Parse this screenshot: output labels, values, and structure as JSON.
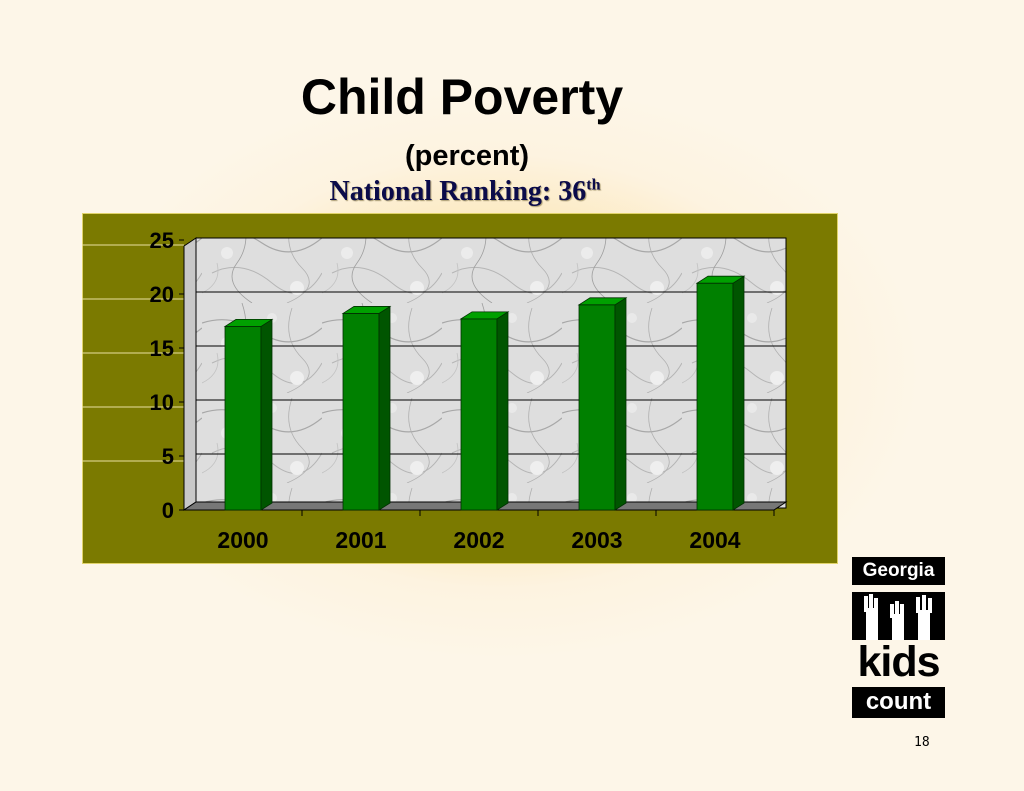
{
  "slide": {
    "title": "Child Poverty",
    "subtitle": "(percent)",
    "ranking_text": "National Ranking: 36",
    "ranking_sup": "th",
    "page_number": "18"
  },
  "logo": {
    "line1": "Georgia",
    "line2": "kids",
    "line3": "count"
  },
  "chart_data": {
    "type": "bar",
    "categories": [
      "2000",
      "2001",
      "2002",
      "2003",
      "2004"
    ],
    "values": [
      17,
      18.2,
      17.7,
      19,
      21
    ],
    "title": "",
    "xlabel": "",
    "ylabel": "",
    "ylim": [
      0,
      25
    ],
    "yticks": [
      "0",
      "5",
      "10",
      "15",
      "20",
      "25"
    ],
    "grid": true,
    "legend": "none",
    "colors": {
      "bar": "#008000",
      "bar_side": "#005500",
      "bar_top": "#00a000",
      "panel": "#7b7a00",
      "wall": "#dcdcdc"
    }
  }
}
